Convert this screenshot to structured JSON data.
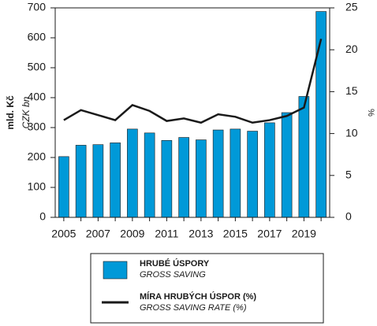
{
  "chart_data": {
    "type": "bar",
    "y_label": "mld. Kč",
    "y_label_en": "CZK bn",
    "y2_label": "%",
    "categories": [
      "2005",
      null,
      "2007",
      null,
      "2009",
      null,
      "2011",
      null,
      "2013",
      null,
      "2015",
      null,
      "2017",
      null,
      "2019",
      null
    ],
    "series": [
      {
        "name": "HRUBÉ ÚSPORY",
        "name_en": "GROSS SAVING",
        "type": "bar",
        "color": "#0099d8",
        "values": [
          203,
          241,
          243,
          249,
          295,
          282,
          257,
          267,
          259,
          292,
          295,
          288,
          316,
          350,
          404,
          688
        ]
      },
      {
        "name": "MÍRA HRUBÝCH ÚSPOR (%)",
        "name_en": "GROSS SAVING RATE (%)",
        "type": "line",
        "color": "#1a1a1a",
        "axis": "y2",
        "values": [
          11.6,
          12.8,
          12.2,
          11.6,
          13.4,
          12.7,
          11.5,
          11.8,
          11.3,
          12.3,
          12.0,
          11.3,
          11.6,
          12.1,
          13.1,
          21.3
        ]
      }
    ],
    "ylim": [
      0,
      700
    ],
    "yticks": [
      0,
      100,
      200,
      300,
      400,
      500,
      600,
      700
    ],
    "y2lim": [
      0,
      25
    ],
    "y2ticks": [
      0,
      5,
      10,
      15,
      20,
      25
    ],
    "grid": false,
    "legend": "bottom"
  }
}
